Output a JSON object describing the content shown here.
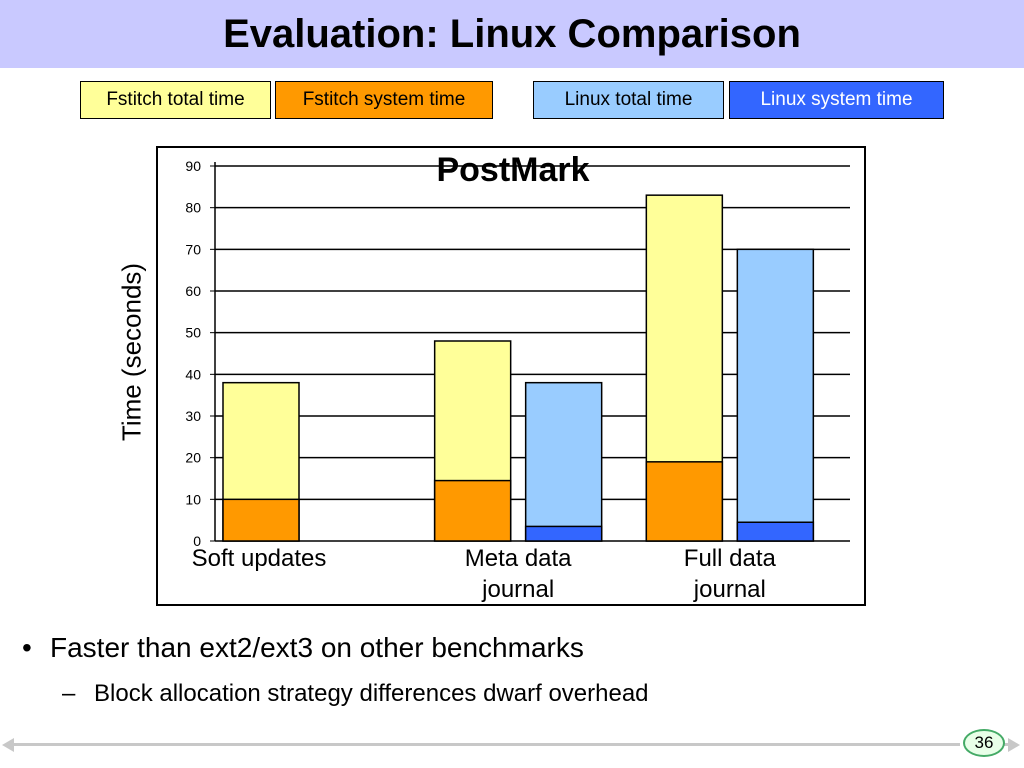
{
  "slide": {
    "title": "Evaluation: Linux Comparison",
    "page_number": "36",
    "bullets": [
      {
        "text": "Faster than ext2/ext3 on other benchmarks",
        "marker": "•"
      },
      {
        "text": "Block allocation strategy differences dwarf overhead",
        "marker": "–"
      }
    ]
  },
  "legend": [
    {
      "label": "Fstitch total time",
      "color": "#ffff99",
      "text_color": "#000000"
    },
    {
      "label": "Fstitch system time",
      "color": "#ff9900",
      "text_color": "#000000"
    },
    {
      "label": "Linux total time",
      "color": "#99ccff",
      "text_color": "#000000"
    },
    {
      "label": "Linux system time",
      "color": "#3366ff",
      "text_color": "#ffffff"
    }
  ],
  "chart_data": {
    "type": "bar",
    "title": "PostMark",
    "xlabel": "",
    "ylabel": "Time (seconds)",
    "ylim": [
      0,
      90
    ],
    "yticks": [
      0,
      10,
      20,
      30,
      40,
      50,
      60,
      70,
      80,
      90
    ],
    "grid": true,
    "categories": [
      "Soft updates",
      "Meta data journal",
      "Full data journal"
    ],
    "category_lines": [
      [
        "Soft updates"
      ],
      [
        "Meta data",
        "journal"
      ],
      [
        "Full data",
        "journal"
      ]
    ],
    "series": [
      {
        "name": "Fstitch total time",
        "values": [
          38,
          48,
          83
        ],
        "color": "#ffff99"
      },
      {
        "name": "Fstitch system time",
        "values": [
          10,
          14.5,
          19
        ],
        "color": "#ff9900"
      },
      {
        "name": "Linux total time",
        "values": [
          null,
          38,
          70
        ],
        "color": "#99ccff"
      },
      {
        "name": "Linux system time",
        "values": [
          null,
          3.5,
          4.5
        ],
        "color": "#3366ff"
      }
    ]
  }
}
